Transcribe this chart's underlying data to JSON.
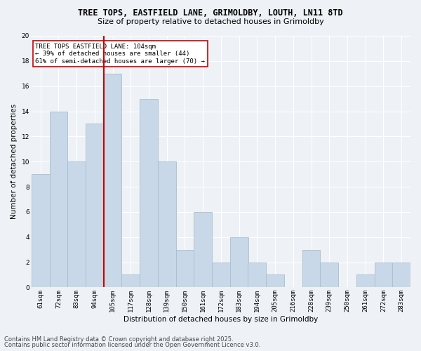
{
  "title1": "TREE TOPS, EASTFIELD LANE, GRIMOLDBY, LOUTH, LN11 8TD",
  "title2": "Size of property relative to detached houses in Grimoldby",
  "xlabel": "Distribution of detached houses by size in Grimoldby",
  "ylabel": "Number of detached properties",
  "bar_color": "#c8d8e8",
  "bar_edgecolor": "#a8bece",
  "ref_line_color": "#cc0000",
  "ref_line_category_index": 4,
  "annotation_title": "TREE TOPS EASTFIELD LANE: 104sqm",
  "annotation_line1": "← 39% of detached houses are smaller (44)",
  "annotation_line2": "61% of semi-detached houses are larger (70) →",
  "categories": [
    "61sqm",
    "72sqm",
    "83sqm",
    "94sqm",
    "105sqm",
    "117sqm",
    "128sqm",
    "139sqm",
    "150sqm",
    "161sqm",
    "172sqm",
    "183sqm",
    "194sqm",
    "205sqm",
    "216sqm",
    "228sqm",
    "239sqm",
    "250sqm",
    "261sqm",
    "272sqm",
    "283sqm"
  ],
  "values": [
    9,
    14,
    10,
    13,
    17,
    1,
    15,
    10,
    3,
    6,
    2,
    4,
    2,
    1,
    0,
    3,
    2,
    0,
    1,
    2,
    2
  ],
  "ylim": [
    0,
    20
  ],
  "yticks": [
    0,
    2,
    4,
    6,
    8,
    10,
    12,
    14,
    16,
    18,
    20
  ],
  "footnote1": "Contains HM Land Registry data © Crown copyright and database right 2025.",
  "footnote2": "Contains public sector information licensed under the Open Government Licence v3.0.",
  "background_color": "#eef2f6",
  "grid_color": "#ffffff",
  "title1_fontsize": 8.5,
  "title2_fontsize": 8,
  "footnote_fontsize": 6,
  "ylabel_fontsize": 7.5,
  "xlabel_fontsize": 7.5,
  "tick_fontsize": 6.5,
  "annotation_fontsize": 6.5
}
